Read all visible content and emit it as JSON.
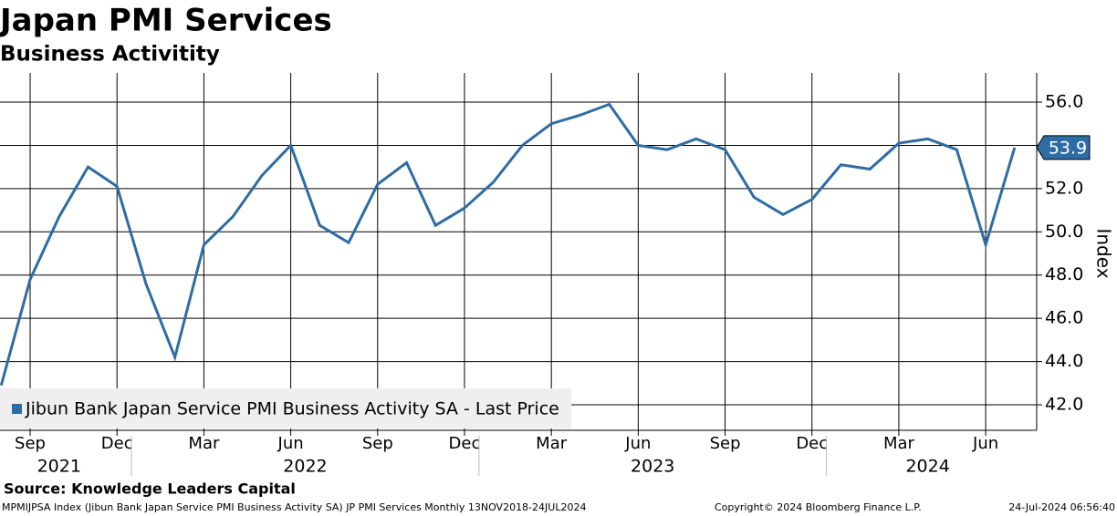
{
  "chart_data": {
    "type": "line",
    "title": "Japan PMI Services",
    "subtitle": "Business Activitity",
    "y_axis_label": "Index",
    "source": "Source: Knowledge Leaders Capital",
    "footer_left": "MPMIJPSA Index (Jibun Bank Japan Service PMI Business Activity SA) JP PMI Services  Monthly 13NOV2018-24JUL2024",
    "footer_center": "Copyright© 2024 Bloomberg Finance L.P.",
    "footer_right": "24-Jul-2024 06:56:40",
    "x": [
      "2021-08",
      "2021-09",
      "2021-10",
      "2021-11",
      "2021-12",
      "2022-01",
      "2022-02",
      "2022-03",
      "2022-04",
      "2022-05",
      "2022-06",
      "2022-07",
      "2022-08",
      "2022-09",
      "2022-10",
      "2022-11",
      "2022-12",
      "2023-01",
      "2023-02",
      "2023-03",
      "2023-04",
      "2023-05",
      "2023-06",
      "2023-07",
      "2023-08",
      "2023-09",
      "2023-10",
      "2023-11",
      "2023-12",
      "2024-01",
      "2024-02",
      "2024-03",
      "2024-04",
      "2024-05",
      "2024-06",
      "2024-07"
    ],
    "series": [
      {
        "name": "Jibun Bank Japan Service PMI Business Activity SA - Last Price",
        "color": "#2e6ca4",
        "values": [
          42.9,
          47.8,
          50.7,
          53.0,
          52.1,
          47.6,
          44.2,
          49.4,
          50.7,
          52.6,
          54.0,
          50.3,
          49.5,
          52.2,
          53.2,
          50.3,
          51.1,
          52.3,
          54.0,
          55.0,
          55.4,
          55.9,
          54.0,
          53.8,
          54.3,
          53.8,
          51.6,
          50.8,
          51.5,
          53.1,
          52.9,
          54.1,
          54.3,
          53.8,
          49.4,
          53.9
        ]
      }
    ],
    "xticks": [
      {
        "value": "2021-09",
        "label": "Sep"
      },
      {
        "value": "2021-12",
        "label": "Dec"
      },
      {
        "value": "2022-03",
        "label": "Mar"
      },
      {
        "value": "2022-06",
        "label": "Jun"
      },
      {
        "value": "2022-09",
        "label": "Sep"
      },
      {
        "value": "2022-12",
        "label": "Dec"
      },
      {
        "value": "2023-03",
        "label": "Mar"
      },
      {
        "value": "2023-06",
        "label": "Jun"
      },
      {
        "value": "2023-09",
        "label": "Sep"
      },
      {
        "value": "2023-12",
        "label": "Dec"
      },
      {
        "value": "2024-03",
        "label": "Mar"
      },
      {
        "value": "2024-06",
        "label": "Jun"
      }
    ],
    "years": [
      2021,
      2022,
      2023,
      2024
    ],
    "ylim": [
      40.82,
      57.35
    ],
    "yticks": [
      {
        "value": 42,
        "label": "42.0"
      },
      {
        "value": 44,
        "label": "44.0"
      },
      {
        "value": 46,
        "label": "46.0"
      },
      {
        "value": 48,
        "label": "48.0"
      },
      {
        "value": 50,
        "label": "50.0"
      },
      {
        "value": 52,
        "label": "52.0"
      },
      {
        "value": 54,
        "label": "54.0"
      },
      {
        "value": 56,
        "label": "56.0"
      }
    ],
    "grid": true,
    "legend": "lower left"
  }
}
